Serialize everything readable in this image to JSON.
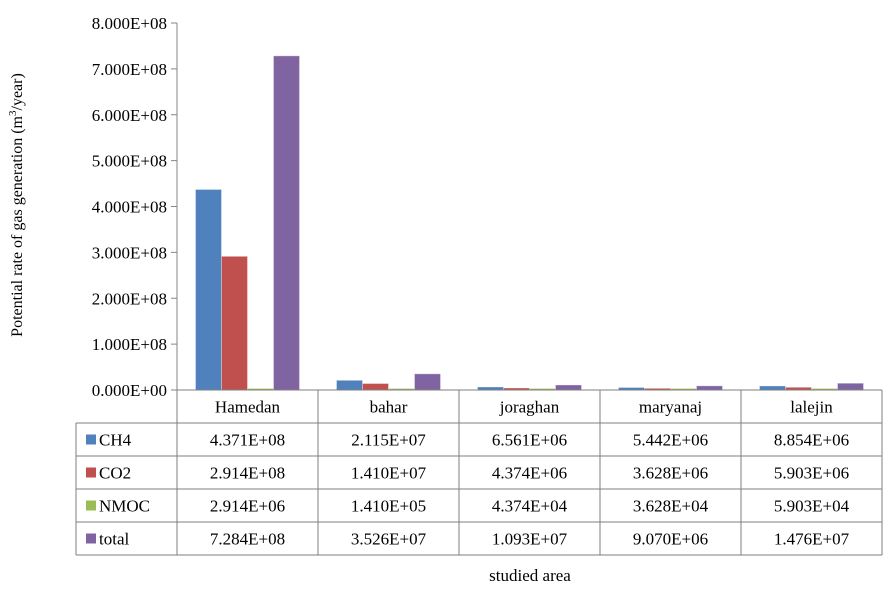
{
  "chart_data": {
    "type": "bar",
    "ylabel": "Potential rate of gas generation (m³/year)",
    "ylabel_prefix": "Potential rate of gas generation (m",
    "ylabel_sup": "3",
    "ylabel_suffix": "/year)",
    "xlabel": "studied area",
    "ylim": [
      0,
      800000000
    ],
    "ytick_values": [
      0,
      100000000,
      200000000,
      300000000,
      400000000,
      500000000,
      600000000,
      700000000,
      800000000
    ],
    "ytick_labels": [
      "0.000E+00",
      "1.000E+08",
      "2.000E+08",
      "3.000E+08",
      "4.000E+08",
      "5.000E+08",
      "6.000E+08",
      "7.000E+08",
      "8.000E+08"
    ],
    "categories": [
      "Hamedan",
      "bahar",
      "joraghan",
      "maryanaj",
      "lalejin"
    ],
    "grid": false,
    "legend": "data-table",
    "series": [
      {
        "name": "CH4",
        "color": "#4f81bd",
        "values": [
          437100000,
          21150000,
          6561000,
          5442000,
          8854000
        ],
        "labels": [
          "4.371E+08",
          "2.115E+07",
          "6.561E+06",
          "5.442E+06",
          "8.854E+06"
        ]
      },
      {
        "name": "CO2",
        "color": "#c0504d",
        "values": [
          291400000,
          14100000,
          4374000,
          3628000,
          5903000
        ],
        "labels": [
          "2.914E+08",
          "1.410E+07",
          "4.374E+06",
          "3.628E+06",
          "5.903E+06"
        ]
      },
      {
        "name": "NMOC",
        "color": "#9bbb59",
        "values": [
          2914000,
          141000,
          43740,
          36280,
          59030
        ],
        "labels": [
          "2.914E+06",
          "1.410E+05",
          "4.374E+04",
          "3.628E+04",
          "5.903E+04"
        ]
      },
      {
        "name": "total",
        "color": "#8064a2",
        "values": [
          728400000,
          35260000,
          10930000,
          9070000,
          14760000
        ],
        "labels": [
          "7.284E+08",
          "3.526E+07",
          "1.093E+07",
          "9.070E+06",
          "1.476E+07"
        ]
      }
    ]
  }
}
